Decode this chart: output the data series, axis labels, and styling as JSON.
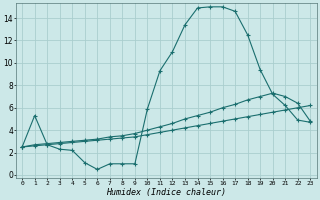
{
  "xlabel": "Humidex (Indice chaleur)",
  "bg_color": "#cce8e8",
  "grid_color": "#aacece",
  "line_color": "#1a6e6e",
  "xlim": [
    -0.5,
    23.5
  ],
  "ylim": [
    -0.3,
    15.3
  ],
  "xticks": [
    0,
    1,
    2,
    3,
    4,
    5,
    6,
    7,
    8,
    9,
    10,
    11,
    12,
    13,
    14,
    15,
    16,
    17,
    18,
    19,
    20,
    21,
    22,
    23
  ],
  "yticks": [
    0,
    2,
    4,
    6,
    8,
    10,
    12,
    14
  ],
  "series1_x": [
    0,
    1,
    2,
    3,
    4,
    5,
    6,
    7,
    8,
    9,
    10,
    11,
    12,
    13,
    14,
    15,
    16,
    17,
    18,
    19,
    20,
    21,
    22,
    23
  ],
  "series1_y": [
    2.5,
    5.3,
    2.7,
    2.3,
    2.2,
    1.1,
    0.5,
    1.0,
    1.0,
    1.0,
    5.9,
    9.3,
    11.0,
    13.4,
    14.9,
    15.0,
    15.0,
    14.6,
    12.5,
    9.4,
    7.2,
    6.2,
    4.9,
    4.7
  ],
  "series2_x": [
    0,
    1,
    2,
    3,
    4,
    5,
    6,
    7,
    8,
    9,
    10,
    11,
    12,
    13,
    14,
    15,
    16,
    17,
    18,
    19,
    20,
    21,
    22,
    23
  ],
  "series2_y": [
    2.5,
    2.7,
    2.8,
    2.9,
    3.0,
    3.1,
    3.2,
    3.4,
    3.5,
    3.7,
    4.0,
    4.3,
    4.6,
    5.0,
    5.3,
    5.6,
    6.0,
    6.3,
    6.7,
    7.0,
    7.3,
    7.0,
    6.4,
    4.8
  ],
  "series3_x": [
    0,
    1,
    2,
    3,
    4,
    5,
    6,
    7,
    8,
    9,
    10,
    11,
    12,
    13,
    14,
    15,
    16,
    17,
    18,
    19,
    20,
    21,
    22,
    23
  ],
  "series3_y": [
    2.5,
    2.6,
    2.7,
    2.8,
    2.9,
    3.0,
    3.1,
    3.2,
    3.3,
    3.4,
    3.6,
    3.8,
    4.0,
    4.2,
    4.4,
    4.6,
    4.8,
    5.0,
    5.2,
    5.4,
    5.6,
    5.8,
    6.0,
    6.2
  ]
}
